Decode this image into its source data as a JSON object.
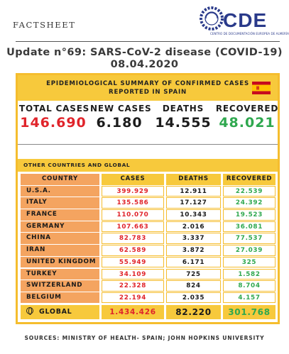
{
  "header": {
    "factsheet_label": "FACTSHEET",
    "logo_text": "CDE",
    "logo_caption": "CENTRO DE DOCUMENTACIÓN EUROPEA DE ALMERÍA",
    "title_line1": "Update n°69: SARS-CoV-2 disease (COVID-19)",
    "title_line2": "08.04.2020"
  },
  "spain": {
    "banner_line1": "EPIDEMIOLOGICAL SUMMARY OF CONFIRMED CASES",
    "banner_line2": "REPORTED IN SPAIN",
    "flag_icon": "spain-flag-icon",
    "stats": [
      {
        "label": "TOTAL CASES",
        "value": "146.690",
        "color": "#e0242b"
      },
      {
        "label": "NEW CASES",
        "value": "6.180",
        "color": "#1c1c1c"
      },
      {
        "label": "DEATHS",
        "value": "14.555",
        "color": "#1c1c1c"
      },
      {
        "label": "RECOVERED",
        "value": "48.021",
        "color": "#2fa84f"
      }
    ]
  },
  "global": {
    "banner": "OTHER COUNTRIES AND GLOBAL",
    "columns": [
      "COUNTRY",
      "CASES",
      "DEATHS",
      "RECOVERED"
    ],
    "rows": [
      {
        "country": "U.S.A.",
        "cases": "399.929",
        "deaths": "12.911",
        "recovered": "22.539"
      },
      {
        "country": "ITALY",
        "cases": "135.586",
        "deaths": "17.127",
        "recovered": "24.392"
      },
      {
        "country": "FRANCE",
        "cases": "110.070",
        "deaths": "10.343",
        "recovered": "19.523"
      },
      {
        "country": "GERMANY",
        "cases": "107.663",
        "deaths": "2.016",
        "recovered": "36.081"
      },
      {
        "country": "CHINA",
        "cases": "82.783",
        "deaths": "3.337",
        "recovered": "77.537"
      },
      {
        "country": "IRAN",
        "cases": "62.589",
        "deaths": "3.872",
        "recovered": "27.039"
      },
      {
        "country": "UNITED KINGDOM",
        "cases": "55.949",
        "deaths": "6.171",
        "recovered": "325"
      },
      {
        "country": "TURKEY",
        "cases": "34.109",
        "deaths": "725",
        "recovered": "1.582"
      },
      {
        "country": "SWITZERLAND",
        "cases": "22.328",
        "deaths": "824",
        "recovered": "8.704"
      },
      {
        "country": "BELGIUM",
        "cases": "22.194",
        "deaths": "2.035",
        "recovered": "4.157"
      }
    ],
    "total": {
      "country": "GLOBAL",
      "cases": "1.434.426",
      "deaths": "82.220",
      "recovered": "301.768",
      "icon": "globe-icon"
    }
  },
  "footer": {
    "sources": "SOURCES: MINISTRY OF HEALTH- SPAIN; JOHN HOPKINS UNIVERSITY"
  },
  "colors": {
    "accent_yellow": "#f7c93c",
    "country_orange": "#f4a460",
    "cases_red": "#e0242b",
    "recovered_green": "#2fa84f"
  }
}
